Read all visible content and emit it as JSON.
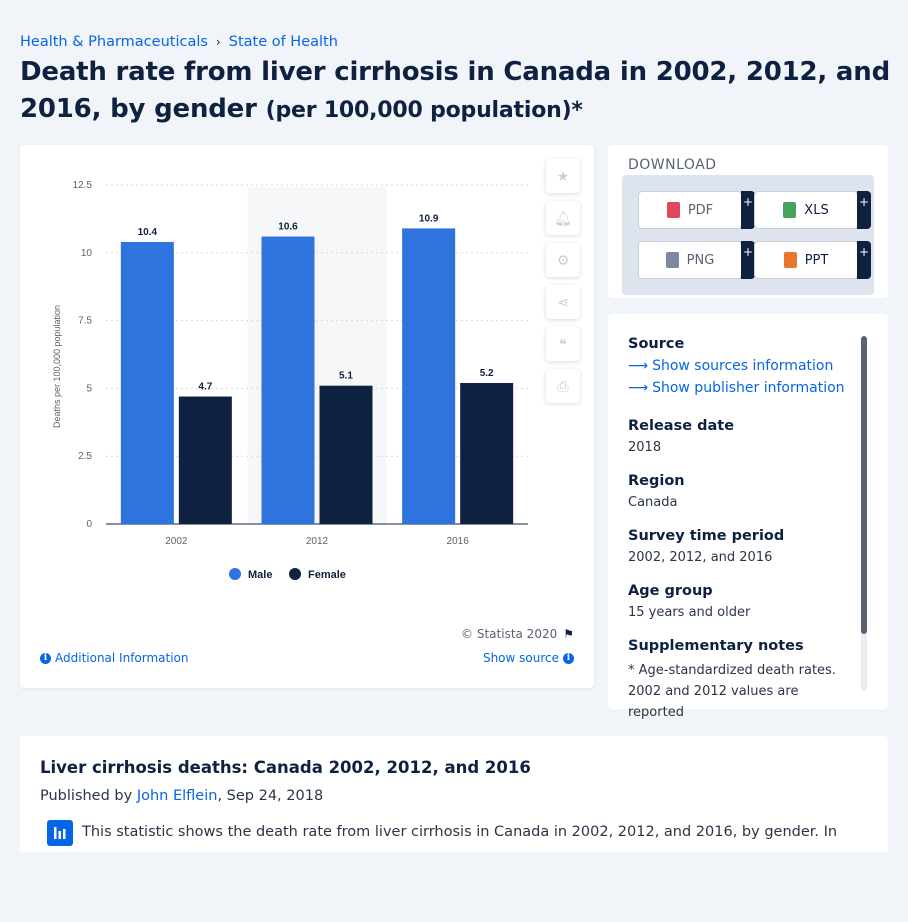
{
  "breadcrumb": [
    "Health & Pharmaceuticals",
    "State of Health"
  ],
  "title_main": "Death rate from liver cirrhosis in Canada in 2002, 2012, and 2016, by gender",
  "title_unit": "(per 100,000 population)*",
  "chart_data": {
    "type": "bar",
    "categories": [
      "2002",
      "2012",
      "2016"
    ],
    "series": [
      {
        "name": "Male",
        "values": [
          10.4,
          10.6,
          10.9
        ],
        "color": "#2f73df"
      },
      {
        "name": "Female",
        "values": [
          4.7,
          5.1,
          5.2
        ],
        "color": "#0f2140"
      }
    ],
    "value_labels": {
      "Male": [
        "10.4",
        "10.6",
        "10.9"
      ],
      "Female": [
        "4.7",
        "5.1",
        "5.2"
      ]
    },
    "ylabel": "Deaths per 100,000 population",
    "xlabel": "",
    "ylim": [
      0,
      12.5
    ],
    "yticks": [
      "0",
      "2.5",
      "5",
      "7.5",
      "10",
      "12.5"
    ],
    "ytick_values": [
      0,
      2.5,
      5,
      7.5,
      10,
      12.5
    ],
    "grid": true,
    "highlight_category": "2012",
    "legend": "bottom-center"
  },
  "chart_footer": {
    "copyright": "© Statista 2020",
    "additional_info": "Additional Information",
    "show_source": "Show source"
  },
  "download": {
    "title": "DOWNLOAD",
    "buttons": [
      {
        "label": "PDF",
        "color": "#e0485a"
      },
      {
        "label": "XLS",
        "color": "#46a35e"
      },
      {
        "label": "PNG",
        "color": "#7b8a9c"
      },
      {
        "label": "PPT",
        "color": "#e8762d"
      }
    ],
    "plus": "+"
  },
  "meta": {
    "source_label": "Source",
    "show_sources": "Show sources information",
    "show_publisher": "Show publisher information",
    "release_label": "Release date",
    "release_value": "2018",
    "region_label": "Region",
    "region_value": "Canada",
    "period_label": "Survey time period",
    "period_value": "2002, 2012, and 2016",
    "age_label": "Age group",
    "age_value": "15 years and older",
    "notes_label": "Supplementary notes",
    "notes_value": "* Age-standardized death rates. 2002 and 2012 values are reported"
  },
  "description": {
    "title": "Liver cirrhosis deaths: Canada 2002, 2012, and 2016",
    "published_by": "Published by",
    "author": "John Elflein",
    "date": ", Sep 24, 2018",
    "text": "This statistic shows the death rate from liver cirrhosis in Canada in 2002, 2012, and 2016, by gender. In"
  }
}
